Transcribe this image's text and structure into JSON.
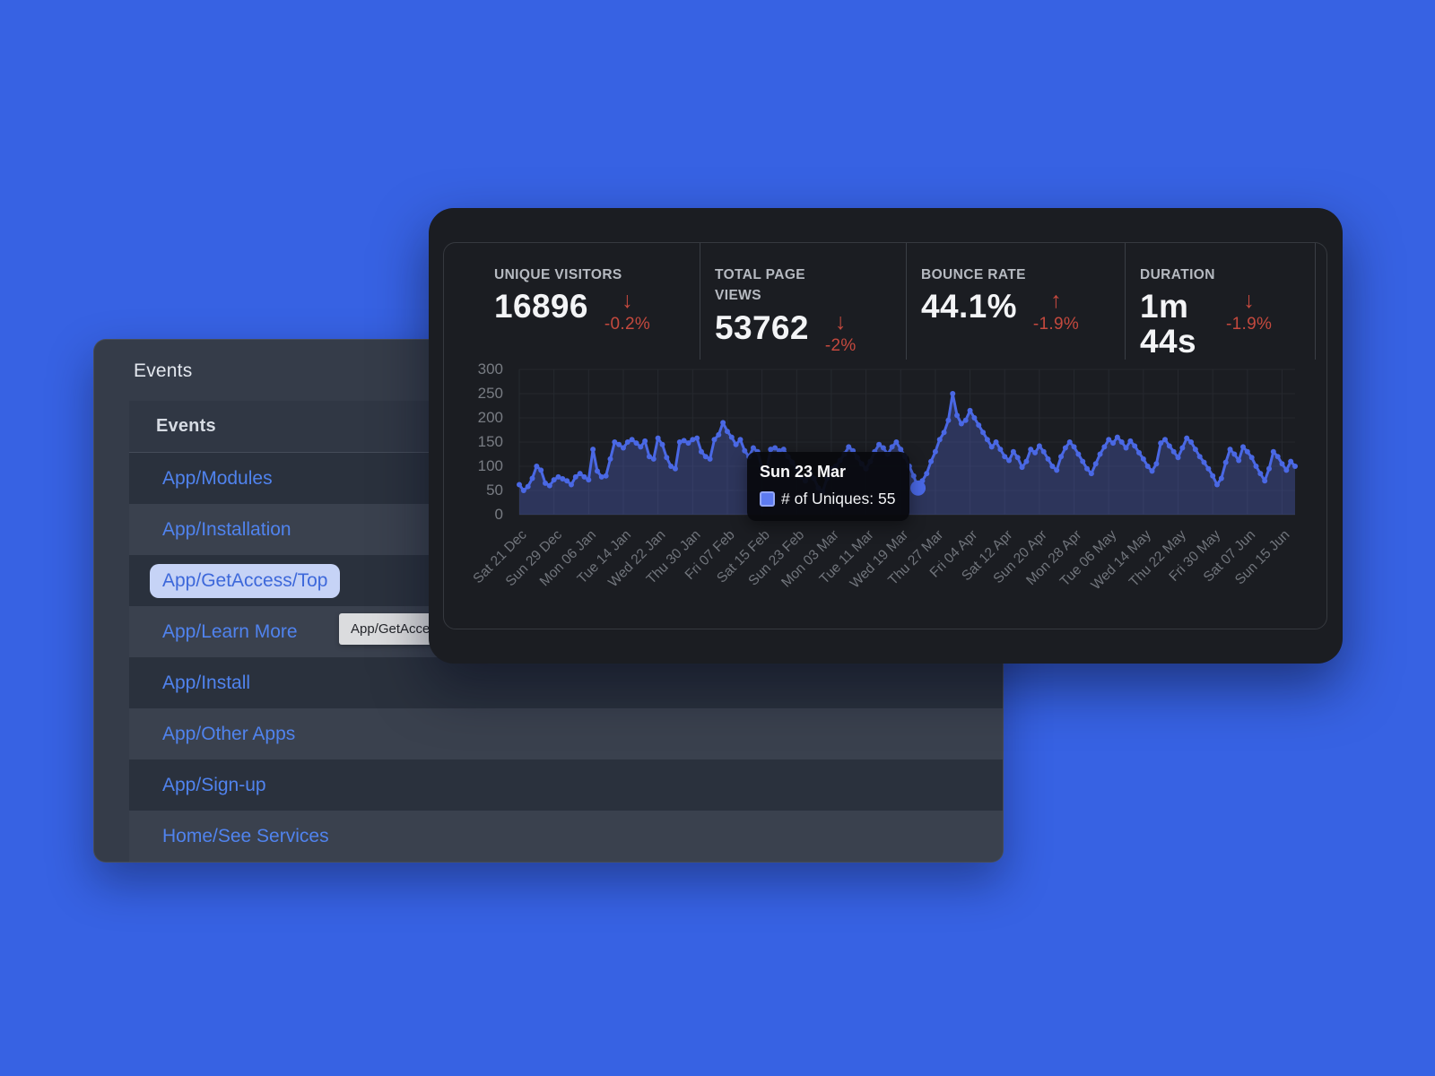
{
  "colors": {
    "page_bg": "#3762E3",
    "front_panel_bg": "#1B1D22",
    "back_panel_bg": "#353C49",
    "link_blue": "#5083EE",
    "selected_pill_bg": "#C6D3F6",
    "negative_red": "#C4493E",
    "line_blue": "#4A68E4",
    "area_fill": "rgba(88,110,225,0.30)"
  },
  "events_panel": {
    "title": "Events",
    "table_header": "Events",
    "items": [
      {
        "label": "App/Modules",
        "selected": false
      },
      {
        "label": "App/Installation",
        "selected": false
      },
      {
        "label": "App/GetAccess/Top",
        "selected": true
      },
      {
        "label": "App/Learn More",
        "selected": false
      },
      {
        "label": "App/Install",
        "selected": false
      },
      {
        "label": "App/Other Apps",
        "selected": false
      },
      {
        "label": "App/Sign-up",
        "selected": false
      },
      {
        "label": "Home/See Services",
        "selected": false
      }
    ],
    "hover_tooltip": "App/GetAccess/Top"
  },
  "analytics_panel": {
    "stats": [
      {
        "label": "UNIQUE VISITORS",
        "value": "16896",
        "arrow": "↓",
        "delta": "-0.2%"
      },
      {
        "label": "TOTAL PAGE VIEWS",
        "value": "53762",
        "arrow": "↓",
        "delta": "-2%"
      },
      {
        "label": "BOUNCE RATE",
        "value": "44.1%",
        "arrow": "↑",
        "delta": "-1.9%"
      },
      {
        "label": "DURATION",
        "value": "1m 44s",
        "arrow": "↓",
        "delta": "-1.9%"
      }
    ]
  },
  "chart_data": {
    "type": "area",
    "title": "",
    "xlabel": "",
    "ylabel": "",
    "ylim": [
      0,
      300
    ],
    "y_ticks": [
      0,
      50,
      100,
      150,
      200,
      250,
      300
    ],
    "grid": true,
    "x_tick_labels": [
      "Sat 21 Dec",
      "Sun 29 Dec",
      "Mon 06 Jan",
      "Tue 14 Jan",
      "Wed 22 Jan",
      "Thu 30 Jan",
      "Fri 07 Feb",
      "Sat 15 Feb",
      "Sun 23 Feb",
      "Mon 03 Mar",
      "Tue 11 Mar",
      "Wed 19 Mar",
      "Thu 27 Mar",
      "Fri 04 Apr",
      "Sat 12 Apr",
      "Sun 20 Apr",
      "Mon 28 Apr",
      "Tue 06 May",
      "Wed 14 May",
      "Thu 22 May",
      "Fri 30 May",
      "Sat 07 Jun",
      "Sun 15 Jun"
    ],
    "x_tick_every": 8,
    "series": [
      {
        "name": "# of Uniques",
        "values": [
          62,
          50,
          58,
          75,
          100,
          92,
          65,
          60,
          72,
          78,
          74,
          70,
          62,
          78,
          85,
          78,
          72,
          135,
          90,
          78,
          80,
          115,
          150,
          145,
          138,
          150,
          155,
          148,
          140,
          152,
          120,
          115,
          158,
          145,
          118,
          100,
          95,
          150,
          153,
          148,
          155,
          158,
          130,
          120,
          115,
          155,
          165,
          190,
          172,
          160,
          145,
          155,
          132,
          120,
          138,
          130,
          98,
          90,
          135,
          138,
          132,
          135,
          120,
          108,
          95,
          78,
          70,
          88,
          75,
          55,
          48,
          75,
          95,
          100,
          112,
          125,
          140,
          132,
          118,
          105,
          95,
          110,
          130,
          145,
          138,
          125,
          140,
          150,
          135,
          120,
          100,
          80,
          55,
          70,
          85,
          110,
          130,
          155,
          170,
          195,
          250,
          205,
          188,
          195,
          215,
          200,
          185,
          170,
          155,
          140,
          150,
          135,
          120,
          112,
          130,
          118,
          98,
          110,
          135,
          128,
          142,
          130,
          115,
          100,
          92,
          120,
          138,
          150,
          140,
          125,
          110,
          95,
          85,
          105,
          125,
          140,
          155,
          148,
          160,
          150,
          138,
          152,
          142,
          128,
          115,
          100,
          90,
          105,
          148,
          155,
          142,
          130,
          118,
          138,
          158,
          150,
          135,
          120,
          108,
          95,
          80,
          62,
          75,
          108,
          135,
          125,
          112,
          140,
          130,
          118,
          100,
          85,
          70,
          95,
          130,
          120,
          105,
          92,
          110,
          100
        ]
      }
    ],
    "highlight_index": 92,
    "highlight_label": "Sun 23 Mar",
    "highlight_value": 55,
    "legend_position": "none"
  }
}
